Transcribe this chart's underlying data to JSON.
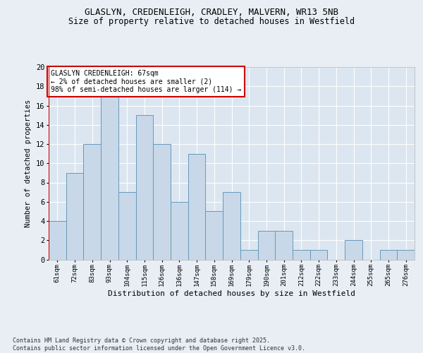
{
  "title_line1": "GLASLYN, CREDENLEIGH, CRADLEY, MALVERN, WR13 5NB",
  "title_line2": "Size of property relative to detached houses in Westfield",
  "xlabel": "Distribution of detached houses by size in Westfield",
  "ylabel": "Number of detached properties",
  "categories": [
    "61sqm",
    "72sqm",
    "83sqm",
    "93sqm",
    "104sqm",
    "115sqm",
    "126sqm",
    "136sqm",
    "147sqm",
    "158sqm",
    "169sqm",
    "179sqm",
    "190sqm",
    "201sqm",
    "212sqm",
    "222sqm",
    "233sqm",
    "244sqm",
    "255sqm",
    "265sqm",
    "276sqm"
  ],
  "values": [
    4,
    9,
    12,
    17,
    7,
    15,
    12,
    6,
    11,
    5,
    7,
    1,
    3,
    3,
    1,
    1,
    0,
    2,
    0,
    1,
    1
  ],
  "bar_color": "#c8d8e8",
  "bar_edge_color": "#6699bb",
  "highlight_color": "#cc0000",
  "annotation_text": "GLASLYN CREDENLEIGH: 67sqm\n← 2% of detached houses are smaller (2)\n98% of semi-detached houses are larger (114) →",
  "annotation_box_color": "#ffffff",
  "annotation_box_edge": "#cc0000",
  "background_color": "#e8eef4",
  "plot_bg_color": "#dce6f0",
  "grid_color": "#ffffff",
  "footer_text": "Contains HM Land Registry data © Crown copyright and database right 2025.\nContains public sector information licensed under the Open Government Licence v3.0.",
  "ylim": [
    0,
    20
  ],
  "yticks": [
    0,
    2,
    4,
    6,
    8,
    10,
    12,
    14,
    16,
    18,
    20
  ]
}
